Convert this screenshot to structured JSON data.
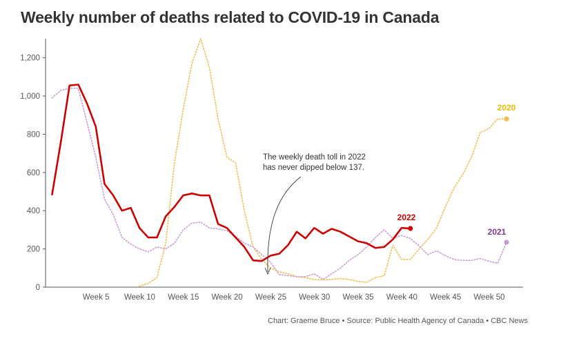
{
  "header": {
    "title": "Weekly number of deaths related to COVID-19 in Canada"
  },
  "footer": {
    "source": "Chart: Graeme Bruce • Source: Public Health Agency of Canada • CBC News"
  },
  "annotation": {
    "line1": "The weekly death toll in 2022",
    "line2": "has never dipped below 137."
  },
  "colors": {
    "series_2020": "#f5bc4f",
    "series_2021": "#c99bd6",
    "series_2022": "#cc0000",
    "label_2020": "#f2b800",
    "label_2021": "#7b3a8f",
    "label_2022": "#cc0000",
    "axis": "#555555",
    "annotation_arrow": "#333333"
  },
  "chart_data": {
    "type": "line",
    "title": "Weekly number of deaths related to COVID-19 in Canada",
    "xlabel": "",
    "ylabel": "",
    "xlim": [
      1,
      53
    ],
    "ylim": [
      0,
      1300
    ],
    "x_ticks": [
      {
        "value": 5,
        "label": "Week 5"
      },
      {
        "value": 10,
        "label": "Week 10"
      },
      {
        "value": 15,
        "label": "Week 15"
      },
      {
        "value": 20,
        "label": "Week 20"
      },
      {
        "value": 25,
        "label": "Week 25"
      },
      {
        "value": 30,
        "label": "Week 30"
      },
      {
        "value": 35,
        "label": "Week 35"
      },
      {
        "value": 40,
        "label": "Week 40"
      },
      {
        "value": 45,
        "label": "Week 45"
      },
      {
        "value": 50,
        "label": "Week 50"
      }
    ],
    "y_ticks": [
      {
        "value": 0,
        "label": "0"
      },
      {
        "value": 200,
        "label": "200"
      },
      {
        "value": 400,
        "label": "400"
      },
      {
        "value": 600,
        "label": "600"
      },
      {
        "value": 800,
        "label": "800"
      },
      {
        "value": 1000,
        "label": "1,000"
      },
      {
        "value": 1200,
        "label": "1,200"
      }
    ],
    "grid": false,
    "legend": "inline labels at series ends",
    "series": [
      {
        "name": "2020",
        "style": "dotted",
        "x": [
          11,
          12,
          13,
          14,
          15,
          16,
          17,
          18,
          19,
          20,
          21,
          22,
          23,
          24,
          25,
          26,
          27,
          28,
          29,
          30,
          31,
          32,
          33,
          34,
          35,
          36,
          37,
          38,
          39,
          40,
          41,
          42,
          43,
          44,
          45,
          46,
          47,
          48,
          49,
          50,
          51,
          52,
          53
        ],
        "values": [
          5,
          20,
          50,
          230,
          650,
          930,
          1170,
          1300,
          1150,
          880,
          680,
          650,
          400,
          210,
          145,
          100,
          80,
          70,
          55,
          50,
          40,
          38,
          40,
          45,
          40,
          30,
          25,
          50,
          60,
          220,
          145,
          145,
          200,
          250,
          310,
          420,
          520,
          590,
          680,
          810,
          830,
          880,
          880
        ]
      },
      {
        "name": "2021",
        "style": "dotted",
        "x": [
          1,
          2,
          3,
          4,
          5,
          6,
          7,
          8,
          9,
          10,
          11,
          12,
          13,
          14,
          15,
          16,
          17,
          18,
          19,
          20,
          21,
          22,
          23,
          24,
          25,
          26,
          27,
          28,
          29,
          30,
          31,
          32,
          33,
          34,
          35,
          36,
          37,
          38,
          39,
          40,
          41,
          42,
          43,
          44,
          45,
          46,
          47,
          48,
          49,
          50,
          51,
          52,
          53
        ],
        "values": [
          990,
          1030,
          1040,
          1040,
          860,
          680,
          460,
          380,
          260,
          225,
          200,
          185,
          210,
          200,
          230,
          300,
          335,
          340,
          310,
          305,
          295,
          265,
          230,
          210,
          170,
          130,
          65,
          60,
          55,
          55,
          70,
          40,
          70,
          100,
          140,
          170,
          210,
          260,
          300,
          255,
          270,
          255,
          215,
          170,
          190,
          165,
          145,
          140,
          140,
          150,
          135,
          125,
          235
        ]
      },
      {
        "name": "2022",
        "style": "solid",
        "x": [
          1,
          2,
          3,
          4,
          5,
          6,
          7,
          8,
          9,
          10,
          11,
          12,
          13,
          14,
          15,
          16,
          17,
          18,
          19,
          20,
          21,
          22,
          23,
          24,
          25,
          26,
          27,
          28,
          29,
          30,
          31,
          32,
          33,
          34,
          35,
          36,
          37,
          38,
          39,
          40,
          41,
          42
        ],
        "values": [
          485,
          760,
          1055,
          1060,
          960,
          840,
          540,
          480,
          400,
          415,
          310,
          260,
          260,
          370,
          420,
          480,
          490,
          480,
          480,
          330,
          310,
          260,
          210,
          140,
          137,
          165,
          175,
          220,
          290,
          255,
          310,
          280,
          305,
          290,
          265,
          240,
          230,
          205,
          210,
          250,
          310,
          307
        ]
      }
    ],
    "series_labels": [
      {
        "name": "2020",
        "text": "2020"
      },
      {
        "name": "2021",
        "text": "2021"
      },
      {
        "name": "2022",
        "text": "2022"
      }
    ]
  }
}
